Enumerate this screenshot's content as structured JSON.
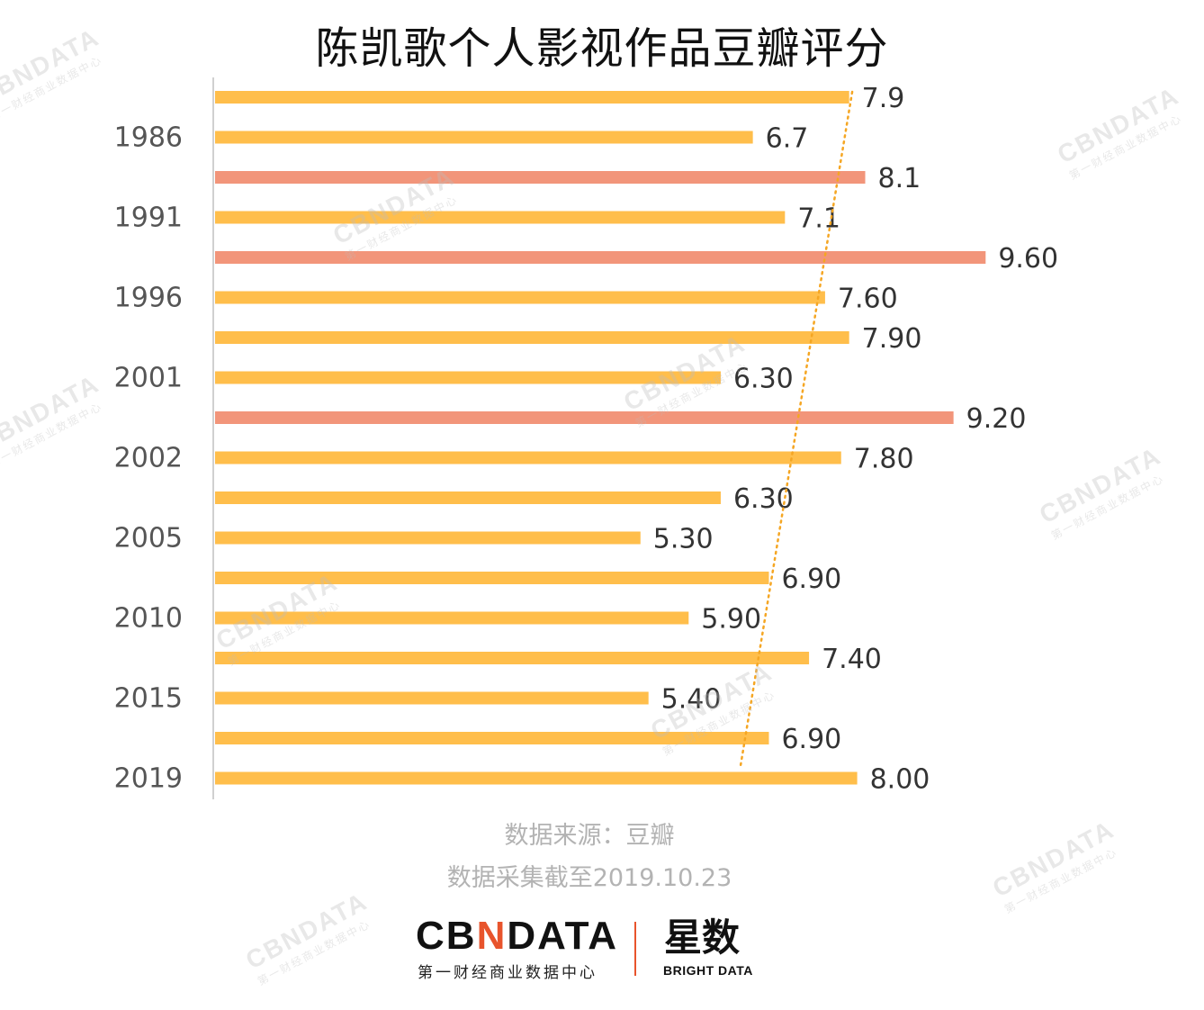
{
  "title": "陈凯歌个人影视作品豆瓣评分",
  "source": "数据来源：豆瓣",
  "date_note": "数据采集截至2019.10.23",
  "logo": {
    "brand_prefix": "CB",
    "brand_mark": "N",
    "brand_suffix": "DATA",
    "brand_sub": "第一财经商业数据中心",
    "partner_name": "星数",
    "partner_sub": "BRIGHT DATA"
  },
  "watermark": {
    "text": "CBNDATA",
    "sub": "第一财经商业数据中心"
  },
  "colors": {
    "bar_default": "#ffbe4b",
    "bar_highlight": "#f2957a",
    "trendline": "#f5a623",
    "axis": "#d0d0d0"
  },
  "chart_data": {
    "type": "bar",
    "orientation": "horizontal",
    "title": "陈凯歌个人影视作品豆瓣评分",
    "y_tick_labels": [
      "1986",
      "1991",
      "1996",
      "2001",
      "2002",
      "2005",
      "2010",
      "2015",
      "2019"
    ],
    "value_labels": [
      "7.9",
      "6.7",
      "8.1",
      "7.1",
      "9.60",
      "7.60",
      "7.90",
      "6.30",
      "9.20",
      "7.80",
      "6.30",
      "5.30",
      "6.90",
      "5.90",
      "7.40",
      "5.40",
      "6.90",
      "8.00"
    ],
    "values": [
      7.9,
      6.7,
      8.1,
      7.1,
      9.6,
      7.6,
      7.9,
      6.3,
      9.2,
      7.8,
      6.3,
      5.3,
      6.9,
      5.9,
      7.4,
      5.4,
      6.9,
      8.0
    ],
    "highlight": [
      false,
      false,
      true,
      false,
      true,
      false,
      false,
      false,
      true,
      false,
      false,
      false,
      false,
      false,
      false,
      false,
      false,
      false
    ],
    "trendline": {
      "type": "linear",
      "style": "dotted"
    },
    "xlim": [
      0,
      10
    ],
    "grid": false,
    "legend": "none"
  }
}
